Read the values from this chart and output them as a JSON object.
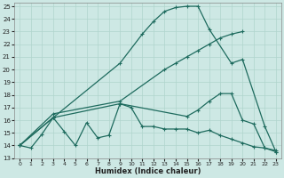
{
  "xlabel": "Humidex (Indice chaleur)",
  "bg_color": "#cde8e4",
  "grid_color": "#b0d4cc",
  "line_color": "#1e6b5e",
  "xlim": [
    -0.5,
    23.5
  ],
  "ylim": [
    13,
    25.3
  ],
  "xticks": [
    0,
    1,
    2,
    3,
    4,
    5,
    6,
    7,
    8,
    9,
    10,
    11,
    12,
    13,
    14,
    15,
    16,
    17,
    18,
    19,
    20,
    21,
    22,
    23
  ],
  "yticks": [
    13,
    14,
    15,
    16,
    17,
    18,
    19,
    20,
    21,
    22,
    23,
    24,
    25
  ],
  "s1_x": [
    0,
    1,
    2,
    3,
    4,
    5,
    6,
    7,
    8,
    9,
    10,
    11,
    12,
    13,
    14,
    15,
    16,
    17,
    18,
    19,
    20,
    21,
    22,
    23
  ],
  "s1_y": [
    14,
    13.8,
    14.9,
    16.2,
    15.1,
    14.0,
    15.8,
    14.6,
    14.8,
    17.3,
    17.0,
    15.5,
    15.5,
    15.3,
    15.3,
    15.3,
    15.0,
    15.2,
    14.8,
    14.5,
    14.2,
    13.9,
    13.8,
    13.6
  ],
  "s2_x": [
    0,
    3,
    9,
    11,
    12,
    13,
    14,
    15,
    16,
    17,
    19,
    20,
    22,
    23
  ],
  "s2_y": [
    14,
    16.2,
    20.5,
    22.8,
    23.8,
    24.6,
    24.9,
    25.0,
    25.0,
    23.2,
    20.5,
    20.8,
    15.5,
    13.5
  ],
  "s3_x": [
    0,
    3,
    9,
    15,
    16,
    17,
    18,
    19,
    20,
    21,
    22,
    23
  ],
  "s3_y": [
    14,
    16.2,
    17.3,
    16.3,
    16.8,
    17.5,
    18.1,
    18.1,
    16.0,
    15.7,
    13.8,
    13.5
  ],
  "s4_x": [
    0,
    3,
    9,
    13,
    14,
    15,
    16,
    17,
    18,
    19,
    20
  ],
  "s4_y": [
    14,
    16.5,
    17.5,
    20.0,
    20.5,
    21.0,
    21.5,
    22.0,
    22.5,
    22.8,
    23.0
  ]
}
